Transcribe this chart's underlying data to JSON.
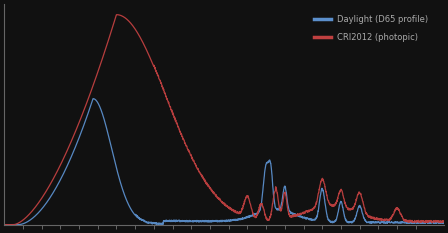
{
  "title": "",
  "xlabel": "",
  "ylabel": "",
  "background_color": "#111111",
  "plot_bg_color": "#111111",
  "blue_color": "#5b8fcc",
  "red_color": "#c04040",
  "legend_blue": "Daylight (D65 profile)",
  "legend_red": "CRI2012 (photopic)",
  "xlim": [
    360,
    830
  ],
  "ylim": [
    0,
    1.05
  ],
  "figsize": [
    4.48,
    2.33
  ],
  "dpi": 100,
  "tick_color": "#666666",
  "spine_color": "#666666",
  "text_color": "#aaaaaa"
}
